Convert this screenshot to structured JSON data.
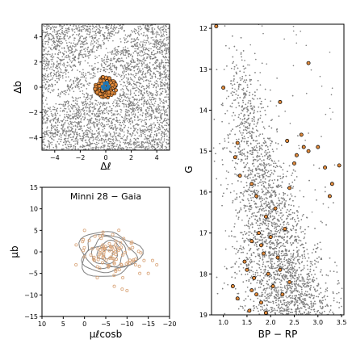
{
  "chart_data": [
    {
      "type": "scatter",
      "panel": "sky",
      "xlabel": "Δℓ",
      "ylabel": "Δb",
      "xlim": [
        -5,
        5
      ],
      "ylim": [
        -5,
        5
      ],
      "xticks": [
        -4,
        -2,
        0,
        2,
        4
      ],
      "yticks": [
        -4,
        -2,
        0,
        2,
        4
      ],
      "field_color": "#808080",
      "member_color": "#e08a3c",
      "member_cluster": {
        "center": [
          0.0,
          0.0
        ],
        "radius": 0.85
      },
      "member_core_color": "#1f77b4",
      "extinction_lane": {
        "from": [
          -4.5,
          -0.7
        ],
        "to": [
          2.2,
          4.9
        ],
        "width": 0.35
      },
      "extinction_lane_2": {
        "from": [
          -4.8,
          -1.4
        ],
        "to": [
          -0.8,
          0.1
        ],
        "width": 0.3
      }
    },
    {
      "type": "scatter",
      "panel": "proper-motion",
      "title": "Minni 28  −  Gaia",
      "xlabel": "μℓcosb",
      "ylabel": "μb",
      "xlim": [
        10,
        -20
      ],
      "ylim": [
        -15,
        15
      ],
      "xticks": [
        10,
        5,
        0,
        -5,
        -10,
        -15,
        -20
      ],
      "yticks": [
        -15,
        -10,
        -5,
        0,
        5,
        10,
        15
      ],
      "member_color": "#d9a57a",
      "contour_color": "#808080",
      "contours_center": [
        -5.5,
        -0.5
      ],
      "contour_radii": [
        [
          1.2,
          1.0
        ],
        [
          2.4,
          1.9
        ],
        [
          3.6,
          2.8
        ],
        [
          4.8,
          3.6
        ],
        [
          6.0,
          4.3
        ],
        [
          7.0,
          5.2
        ]
      ],
      "outliers": [
        [
          -12,
          -3
        ],
        [
          -14,
          -2
        ],
        [
          -13,
          -5
        ],
        [
          -16,
          -2
        ],
        [
          -3,
          -6
        ],
        [
          2,
          -3
        ],
        [
          -7,
          -8
        ],
        [
          0,
          5
        ],
        [
          -10,
          -9
        ],
        [
          -9,
          -6
        ],
        [
          -15,
          -5
        ],
        [
          -11,
          2
        ],
        [
          -17,
          -3
        ]
      ]
    },
    {
      "type": "scatter",
      "panel": "cmd",
      "xlabel": "BP − RP",
      "ylabel": "G",
      "xlim": [
        0.75,
        3.55
      ],
      "ylim": [
        19.0,
        11.9
      ],
      "xticks": [
        1.0,
        1.5,
        2.0,
        2.5,
        3.0,
        3.5
      ],
      "xtick_labels": [
        "1.0",
        "1.5",
        "2.0",
        "2.5",
        "3.0",
        "3.5"
      ],
      "yticks": [
        12,
        13,
        14,
        15,
        16,
        17,
        18,
        19
      ],
      "field_color": "#808080",
      "member_color": "#e08a3c",
      "members": [
        [
          0.85,
          11.95
        ],
        [
          1.0,
          13.45
        ],
        [
          2.8,
          12.85
        ],
        [
          2.2,
          13.8
        ],
        [
          2.7,
          14.9
        ],
        [
          3.0,
          14.9
        ],
        [
          2.8,
          15.0
        ],
        [
          2.5,
          15.3
        ],
        [
          3.15,
          15.4
        ],
        [
          3.45,
          15.35
        ],
        [
          3.3,
          15.8
        ],
        [
          3.25,
          16.1
        ],
        [
          2.4,
          15.9
        ],
        [
          2.1,
          16.4
        ],
        [
          1.9,
          16.6
        ],
        [
          1.7,
          16.1
        ],
        [
          1.6,
          15.8
        ],
        [
          2.55,
          15.1
        ],
        [
          2.65,
          14.6
        ],
        [
          2.35,
          14.75
        ],
        [
          1.3,
          14.8
        ],
        [
          1.25,
          15.15
        ],
        [
          1.35,
          15.6
        ],
        [
          1.45,
          17.7
        ],
        [
          1.2,
          18.3
        ],
        [
          1.3,
          18.6
        ],
        [
          1.55,
          18.9
        ],
        [
          1.8,
          18.7
        ],
        [
          2.25,
          18.5
        ],
        [
          1.6,
          17.2
        ],
        [
          1.75,
          17.0
        ],
        [
          2.0,
          17.1
        ],
        [
          2.3,
          16.9
        ],
        [
          1.65,
          18.1
        ],
        [
          1.95,
          18.0
        ],
        [
          2.15,
          17.6
        ],
        [
          1.85,
          17.5
        ],
        [
          1.5,
          17.9
        ],
        [
          2.05,
          18.3
        ],
        [
          1.7,
          18.5
        ],
        [
          2.4,
          18.2
        ],
        [
          1.9,
          18.95
        ],
        [
          1.6,
          18.4
        ],
        [
          2.2,
          17.9
        ],
        [
          1.8,
          17.3
        ]
      ]
    }
  ]
}
